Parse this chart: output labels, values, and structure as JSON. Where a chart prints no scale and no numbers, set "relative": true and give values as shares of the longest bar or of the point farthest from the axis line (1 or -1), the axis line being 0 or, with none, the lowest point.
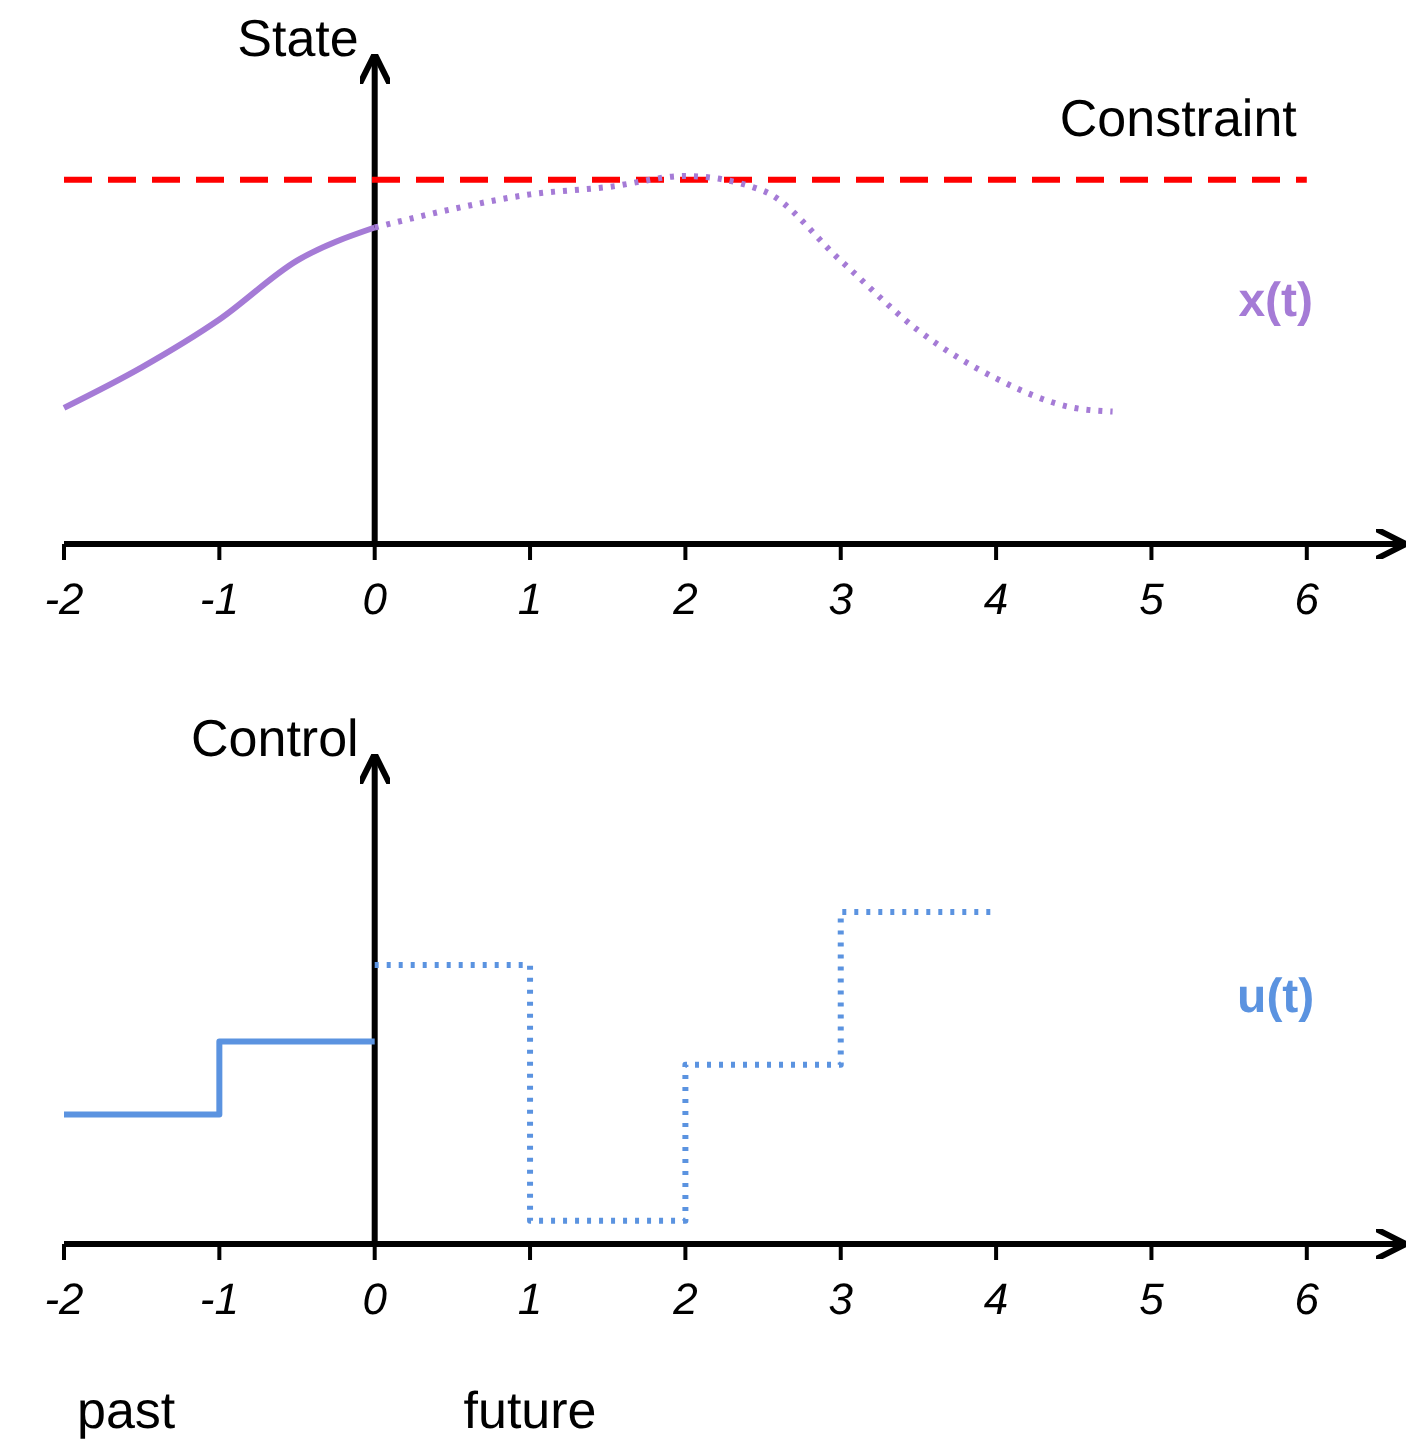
{
  "chart_data": [
    {
      "type": "line",
      "ylabel": "State",
      "relative": true,
      "xlim": [
        -2,
        6.6
      ],
      "xticks": [
        -2,
        -1,
        0,
        1,
        2,
        3,
        4,
        5,
        6
      ],
      "tick_labels": "x",
      "legend": false,
      "marker": "none",
      "series": [
        {
          "color": "#a57bd6",
          "line_style": "solid",
          "x": [
            -2,
            -1.5,
            -1,
            -0.5,
            0
          ],
          "values": [
            0.37,
            0.48,
            0.61,
            0.77,
            0.86
          ]
        },
        {
          "name": "x(t)",
          "color": "#a57bd6",
          "line_style": "dotted",
          "x": [
            0,
            0.5,
            1,
            1.5,
            2,
            2.5,
            3,
            3.5,
            4,
            4.5,
            4.75
          ],
          "values": [
            0.86,
            0.91,
            0.95,
            0.97,
            1.0,
            0.96,
            0.77,
            0.58,
            0.45,
            0.37,
            0.36
          ]
        }
      ],
      "ref_lines": [
        {
          "axis": "y",
          "value": 0.99,
          "label": "Constraint",
          "color": "#ff0000",
          "line_style": "dashed"
        }
      ]
    },
    {
      "type": "step",
      "ylabel": "Control",
      "relative": true,
      "xlim": [
        -2,
        6.6
      ],
      "xticks": [
        -2,
        -1,
        0,
        1,
        2,
        3,
        4,
        5,
        6
      ],
      "tick_labels": "x",
      "legend": false,
      "marker": "none",
      "series": [
        {
          "color": "#5b93e0",
          "line_style": "solid",
          "x": [
            -2,
            -1,
            0
          ],
          "values": [
            0.39,
            0.61,
            0.61
          ]
        },
        {
          "name": "u(t)",
          "color": "#5b93e0",
          "line_style": "dotted",
          "x": [
            0,
            1,
            2,
            3,
            4
          ],
          "values": [
            0.84,
            0.07,
            0.54,
            1,
            1
          ]
        }
      ],
      "annotations": [
        "past",
        "future"
      ]
    }
  ]
}
